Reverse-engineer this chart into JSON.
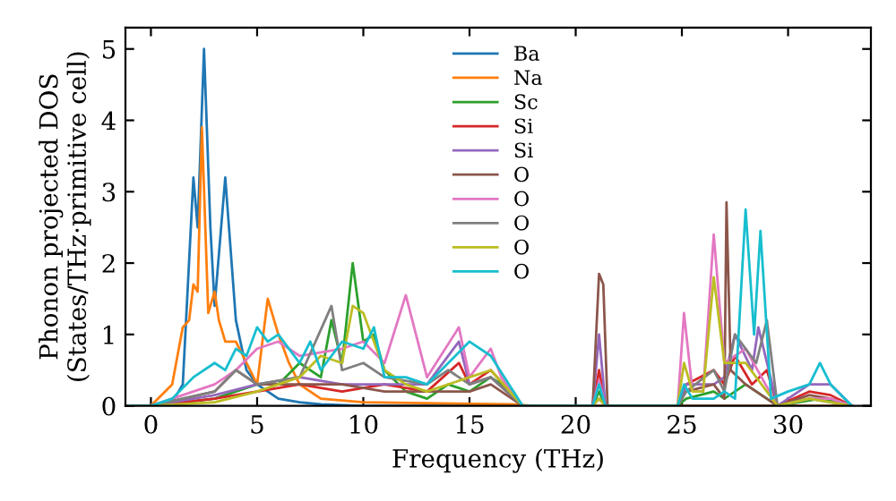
{
  "chart_data": {
    "type": "line",
    "xlabel": "Frequency (THz)",
    "ylabel": "Phonon projected DOS\n(States/THz·primitive cell)",
    "xlim": [
      -1.2,
      33.9
    ],
    "ylim": [
      0,
      5.3
    ],
    "xticks": [
      0,
      5,
      10,
      15,
      20,
      25,
      30
    ],
    "yticks": [
      0,
      1,
      2,
      3,
      4,
      5
    ],
    "grid": false,
    "legend": "top center",
    "marker": "none",
    "line_style": "solid",
    "series": [
      {
        "name": "Ba",
        "color": "#1f77b4",
        "x": [
          -1,
          0,
          1,
          1.5,
          2,
          2.2,
          2.5,
          2.8,
          3,
          3.5,
          4,
          4.5,
          5,
          6,
          7,
          8,
          10,
          33
        ],
        "values": [
          0,
          0,
          0.05,
          0.3,
          3.2,
          2.5,
          5.0,
          2.5,
          1.4,
          3.2,
          1.2,
          0.5,
          0.3,
          0.1,
          0.05,
          0.02,
          0,
          0
        ]
      },
      {
        "name": "Na",
        "color": "#ff7f0e",
        "x": [
          -1,
          0,
          1,
          1.5,
          1.8,
          2,
          2.2,
          2.4,
          2.7,
          3,
          3.2,
          3.5,
          4,
          4.5,
          5,
          5.5,
          6,
          6.5,
          7,
          8,
          10,
          17,
          18,
          33
        ],
        "values": [
          0,
          0,
          0.3,
          1.1,
          1.2,
          1.7,
          1.6,
          3.9,
          1.3,
          1.6,
          1.2,
          0.9,
          0.9,
          0.6,
          0.3,
          1.5,
          1.0,
          0.6,
          0.3,
          0.1,
          0.05,
          0.02,
          0,
          0
        ]
      },
      {
        "name": "Sc",
        "color": "#2ca02c",
        "x": [
          -1,
          0,
          3,
          5,
          6,
          7,
          8,
          8.5,
          9,
          9.5,
          10,
          10.5,
          11,
          12,
          13,
          14,
          15,
          16,
          16.5,
          17.5,
          20.8,
          21.1,
          21.4,
          24.8,
          25.2,
          26.5,
          27,
          28,
          28.5,
          29.5,
          30.5,
          31.5,
          32.5,
          33
        ],
        "values": [
          0,
          0,
          0.1,
          0.3,
          0.3,
          0.6,
          0.4,
          1.2,
          0.6,
          2.0,
          0.9,
          1.0,
          0.5,
          0.2,
          0.1,
          0.3,
          0.2,
          0.4,
          0.3,
          0,
          0,
          0.2,
          0,
          0,
          0.1,
          0.2,
          0.1,
          0.3,
          0.2,
          0,
          0.05,
          0.1,
          0.05,
          0
        ]
      },
      {
        "name": "Si",
        "color": "#d62728",
        "x": [
          -1,
          0,
          3,
          5,
          7,
          9,
          11,
          13,
          14.5,
          15,
          16,
          17.5,
          20.8,
          21.1,
          21.4,
          24.8,
          25.2,
          26.5,
          27,
          27.5,
          28.3,
          29,
          29.5,
          31,
          32,
          33
        ],
        "values": [
          0,
          0,
          0.1,
          0.2,
          0.3,
          0.2,
          0.3,
          0.2,
          0.6,
          0.3,
          0.5,
          0,
          0,
          0.5,
          0,
          0,
          0.3,
          0.5,
          0.3,
          0.7,
          0.3,
          0.5,
          0,
          0.2,
          0.15,
          0
        ]
      },
      {
        "name": "Si",
        "color": "#9467bd",
        "x": [
          -1,
          0,
          3,
          5,
          7,
          9,
          11,
          13,
          14.5,
          15,
          16,
          17.5,
          20.8,
          21.1,
          21.4,
          24.8,
          25.2,
          26.5,
          27,
          27.5,
          28.3,
          28.6,
          29.5,
          31,
          32,
          33
        ],
        "values": [
          0,
          0,
          0.15,
          0.3,
          0.4,
          0.3,
          0.3,
          0.3,
          0.9,
          0.3,
          0.4,
          0,
          0,
          1.0,
          0,
          0,
          0.3,
          0.3,
          0.4,
          1.0,
          0.5,
          1.1,
          0,
          0.3,
          0.3,
          0
        ]
      },
      {
        "name": "O",
        "color": "#8c564b",
        "x": [
          -1,
          0,
          3,
          4,
          5,
          7,
          9,
          11,
          13,
          15,
          16,
          17.5,
          20.8,
          21.1,
          21.3,
          21.5,
          24.8,
          25.2,
          26.5,
          27,
          27.1,
          27.3,
          28,
          29.5,
          31,
          32,
          33
        ],
        "values": [
          0,
          0,
          0.2,
          0.5,
          0.3,
          0.3,
          0.3,
          0.2,
          0.2,
          0.2,
          0.3,
          0,
          0,
          1.85,
          1.7,
          0,
          0,
          0.2,
          0.3,
          0.1,
          2.85,
          0.5,
          0.3,
          0,
          0.15,
          0.1,
          0
        ]
      },
      {
        "name": "O",
        "color": "#e377c2",
        "x": [
          -1,
          0,
          3,
          4,
          5,
          6,
          7,
          9,
          10,
          11,
          12,
          13,
          14.5,
          15,
          16,
          16.5,
          17.5,
          20.8,
          21.1,
          21.4,
          24.8,
          25.1,
          25.5,
          26,
          26.5,
          27,
          28,
          29.5,
          31,
          32,
          33
        ],
        "values": [
          0,
          0,
          0.3,
          0.5,
          0.8,
          0.9,
          0.7,
          0.8,
          0.9,
          0.6,
          1.55,
          0.4,
          1.1,
          0.4,
          0.8,
          0.4,
          0,
          0,
          0.35,
          0,
          0,
          1.3,
          0.2,
          0.2,
          2.4,
          0.6,
          0.8,
          0,
          0.1,
          0.1,
          0
        ]
      },
      {
        "name": "O",
        "color": "#7f7f7f",
        "x": [
          -1,
          0,
          3,
          4,
          5,
          7,
          8.5,
          9,
          10,
          11,
          13,
          14,
          15,
          16,
          17.5,
          20.8,
          21.1,
          21.4,
          24.8,
          25.2,
          26.5,
          27,
          27.5,
          28.5,
          29,
          29.5,
          31,
          33
        ],
        "values": [
          0,
          0,
          0.2,
          0.5,
          0.3,
          0.4,
          1.4,
          0.5,
          0.6,
          0.4,
          0.3,
          0.5,
          0.3,
          0.4,
          0,
          0,
          0.1,
          0,
          0,
          0.2,
          0.5,
          0.2,
          1.0,
          0.6,
          1.2,
          0,
          0.1,
          0
        ]
      },
      {
        "name": "O",
        "color": "#bcbd22",
        "x": [
          -1,
          0,
          3,
          5,
          7,
          8,
          9,
          9.5,
          10,
          11,
          12,
          13,
          14,
          15,
          16,
          17.5,
          20.8,
          21.1,
          21.4,
          24.8,
          25.1,
          25.5,
          26,
          26.5,
          27,
          28,
          29.5,
          31,
          33
        ],
        "values": [
          0,
          0,
          0.05,
          0.2,
          0.4,
          0.7,
          0.6,
          1.4,
          1.3,
          0.5,
          0.3,
          0.2,
          0.3,
          0.4,
          0.5,
          0,
          0,
          0.1,
          0,
          0,
          0.6,
          0.2,
          0.2,
          1.8,
          0.6,
          0.6,
          0,
          0.1,
          0
        ]
      },
      {
        "name": "O",
        "color": "#17becf",
        "x": [
          -1,
          0,
          1,
          2,
          3,
          3.5,
          4,
          4.5,
          5,
          5.5,
          6,
          7,
          7.5,
          8,
          9,
          10,
          10.5,
          11,
          12,
          13,
          14,
          15,
          16,
          17.5,
          20.8,
          21.1,
          21.4,
          24.8,
          25.1,
          25.5,
          26.5,
          27,
          27.5,
          28,
          28.4,
          28.7,
          29.2,
          30,
          31,
          31.5,
          32,
          33
        ],
        "values": [
          0,
          0,
          0.1,
          0.4,
          0.6,
          0.5,
          0.8,
          0.7,
          1.1,
          0.9,
          1.0,
          0.6,
          0.9,
          0.5,
          0.9,
          0.8,
          1.1,
          0.4,
          0.4,
          0.3,
          0.6,
          0.9,
          0.7,
          0,
          0,
          0.3,
          0,
          0,
          0.3,
          0.1,
          0.1,
          0.2,
          0.1,
          2.75,
          1.0,
          2.45,
          0.1,
          0.2,
          0.3,
          0.6,
          0.3,
          0
        ]
      }
    ]
  }
}
